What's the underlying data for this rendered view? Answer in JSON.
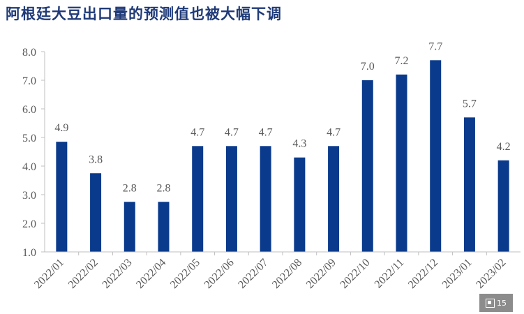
{
  "title": "阿根廷大豆出口量的预测值也被大幅下调",
  "page_number": "15",
  "colors": {
    "bar": "#0a3a8c",
    "title": "#1f3a78",
    "axis_text": "#595959",
    "axis_line": "#bfbfbf"
  },
  "chart_data": {
    "type": "bar",
    "title": "阿根廷大豆出口量的预测值也被大幅下调",
    "xlabel": "",
    "ylabel": "",
    "categories": [
      "2022/01",
      "2022/02",
      "2022/03",
      "2022/04",
      "2022/05",
      "2022/06",
      "2022/07",
      "2022/08",
      "2022/09",
      "2022/10",
      "2022/11",
      "2022/12",
      "2023/01",
      "2023/02"
    ],
    "values": [
      4.85,
      3.75,
      2.75,
      2.75,
      4.7,
      4.7,
      4.7,
      4.3,
      4.7,
      7.0,
      7.2,
      7.7,
      5.7,
      4.2
    ],
    "data_labels": [
      "4.9",
      "3.8",
      "2.8",
      "2.8",
      "4.7",
      "4.7",
      "4.7",
      "4.3",
      "4.7",
      "7.0",
      "7.2",
      "7.7",
      "5.7",
      "4.2"
    ],
    "ylim": [
      1.0,
      8.0
    ],
    "yticks": [
      "1.0",
      "2.0",
      "3.0",
      "4.0",
      "5.0",
      "6.0",
      "7.0",
      "8.0"
    ],
    "grid": false,
    "legend": "none"
  }
}
